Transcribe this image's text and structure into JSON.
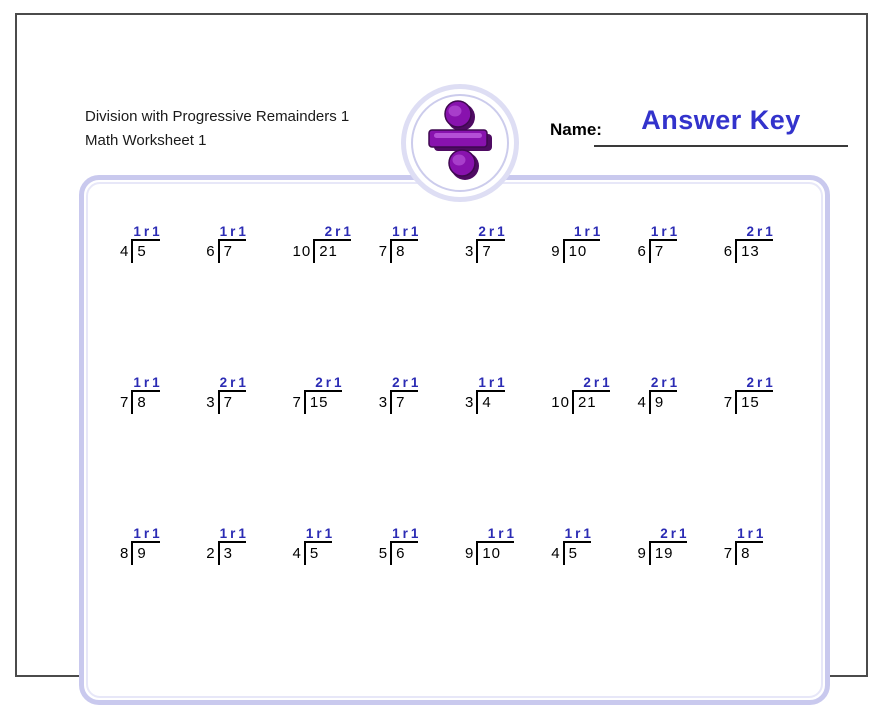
{
  "header": {
    "title_line1": "Division with Progressive Remainders 1",
    "title_line2": "Math Worksheet 1",
    "name_label": "Name:",
    "answer_key_text": "Answer Key"
  },
  "logo": {
    "icon": "division-symbol-icon",
    "symbol_color": "#8812ae",
    "symbol_shadow_color": "#4f0b63",
    "ring_color": "#dedef4"
  },
  "colors": {
    "answer_blue": "#2b2bb4",
    "answer_key_blue": "#3333cc",
    "box_border": "#c9c9ee",
    "page_border": "#4b4b4b"
  },
  "problems": {
    "remainder_label": "r",
    "rows": [
      [
        {
          "divisor": 4,
          "dividend": 5,
          "quotient": 1,
          "remainder": 1
        },
        {
          "divisor": 6,
          "dividend": 7,
          "quotient": 1,
          "remainder": 1
        },
        {
          "divisor": 10,
          "dividend": 21,
          "quotient": 2,
          "remainder": 1
        },
        {
          "divisor": 7,
          "dividend": 8,
          "quotient": 1,
          "remainder": 1
        },
        {
          "divisor": 3,
          "dividend": 7,
          "quotient": 2,
          "remainder": 1
        },
        {
          "divisor": 9,
          "dividend": 10,
          "quotient": 1,
          "remainder": 1
        },
        {
          "divisor": 6,
          "dividend": 7,
          "quotient": 1,
          "remainder": 1
        },
        {
          "divisor": 6,
          "dividend": 13,
          "quotient": 2,
          "remainder": 1
        }
      ],
      [
        {
          "divisor": 7,
          "dividend": 8,
          "quotient": 1,
          "remainder": 1
        },
        {
          "divisor": 3,
          "dividend": 7,
          "quotient": 2,
          "remainder": 1
        },
        {
          "divisor": 7,
          "dividend": 15,
          "quotient": 2,
          "remainder": 1
        },
        {
          "divisor": 3,
          "dividend": 7,
          "quotient": 2,
          "remainder": 1
        },
        {
          "divisor": 3,
          "dividend": 4,
          "quotient": 1,
          "remainder": 1
        },
        {
          "divisor": 10,
          "dividend": 21,
          "quotient": 2,
          "remainder": 1
        },
        {
          "divisor": 4,
          "dividend": 9,
          "quotient": 2,
          "remainder": 1
        },
        {
          "divisor": 7,
          "dividend": 15,
          "quotient": 2,
          "remainder": 1
        }
      ],
      [
        {
          "divisor": 8,
          "dividend": 9,
          "quotient": 1,
          "remainder": 1
        },
        {
          "divisor": 2,
          "dividend": 3,
          "quotient": 1,
          "remainder": 1
        },
        {
          "divisor": 4,
          "dividend": 5,
          "quotient": 1,
          "remainder": 1
        },
        {
          "divisor": 5,
          "dividend": 6,
          "quotient": 1,
          "remainder": 1
        },
        {
          "divisor": 9,
          "dividend": 10,
          "quotient": 1,
          "remainder": 1
        },
        {
          "divisor": 4,
          "dividend": 5,
          "quotient": 1,
          "remainder": 1
        },
        {
          "divisor": 9,
          "dividend": 19,
          "quotient": 2,
          "remainder": 1
        },
        {
          "divisor": 7,
          "dividend": 8,
          "quotient": 1,
          "remainder": 1
        }
      ]
    ]
  }
}
